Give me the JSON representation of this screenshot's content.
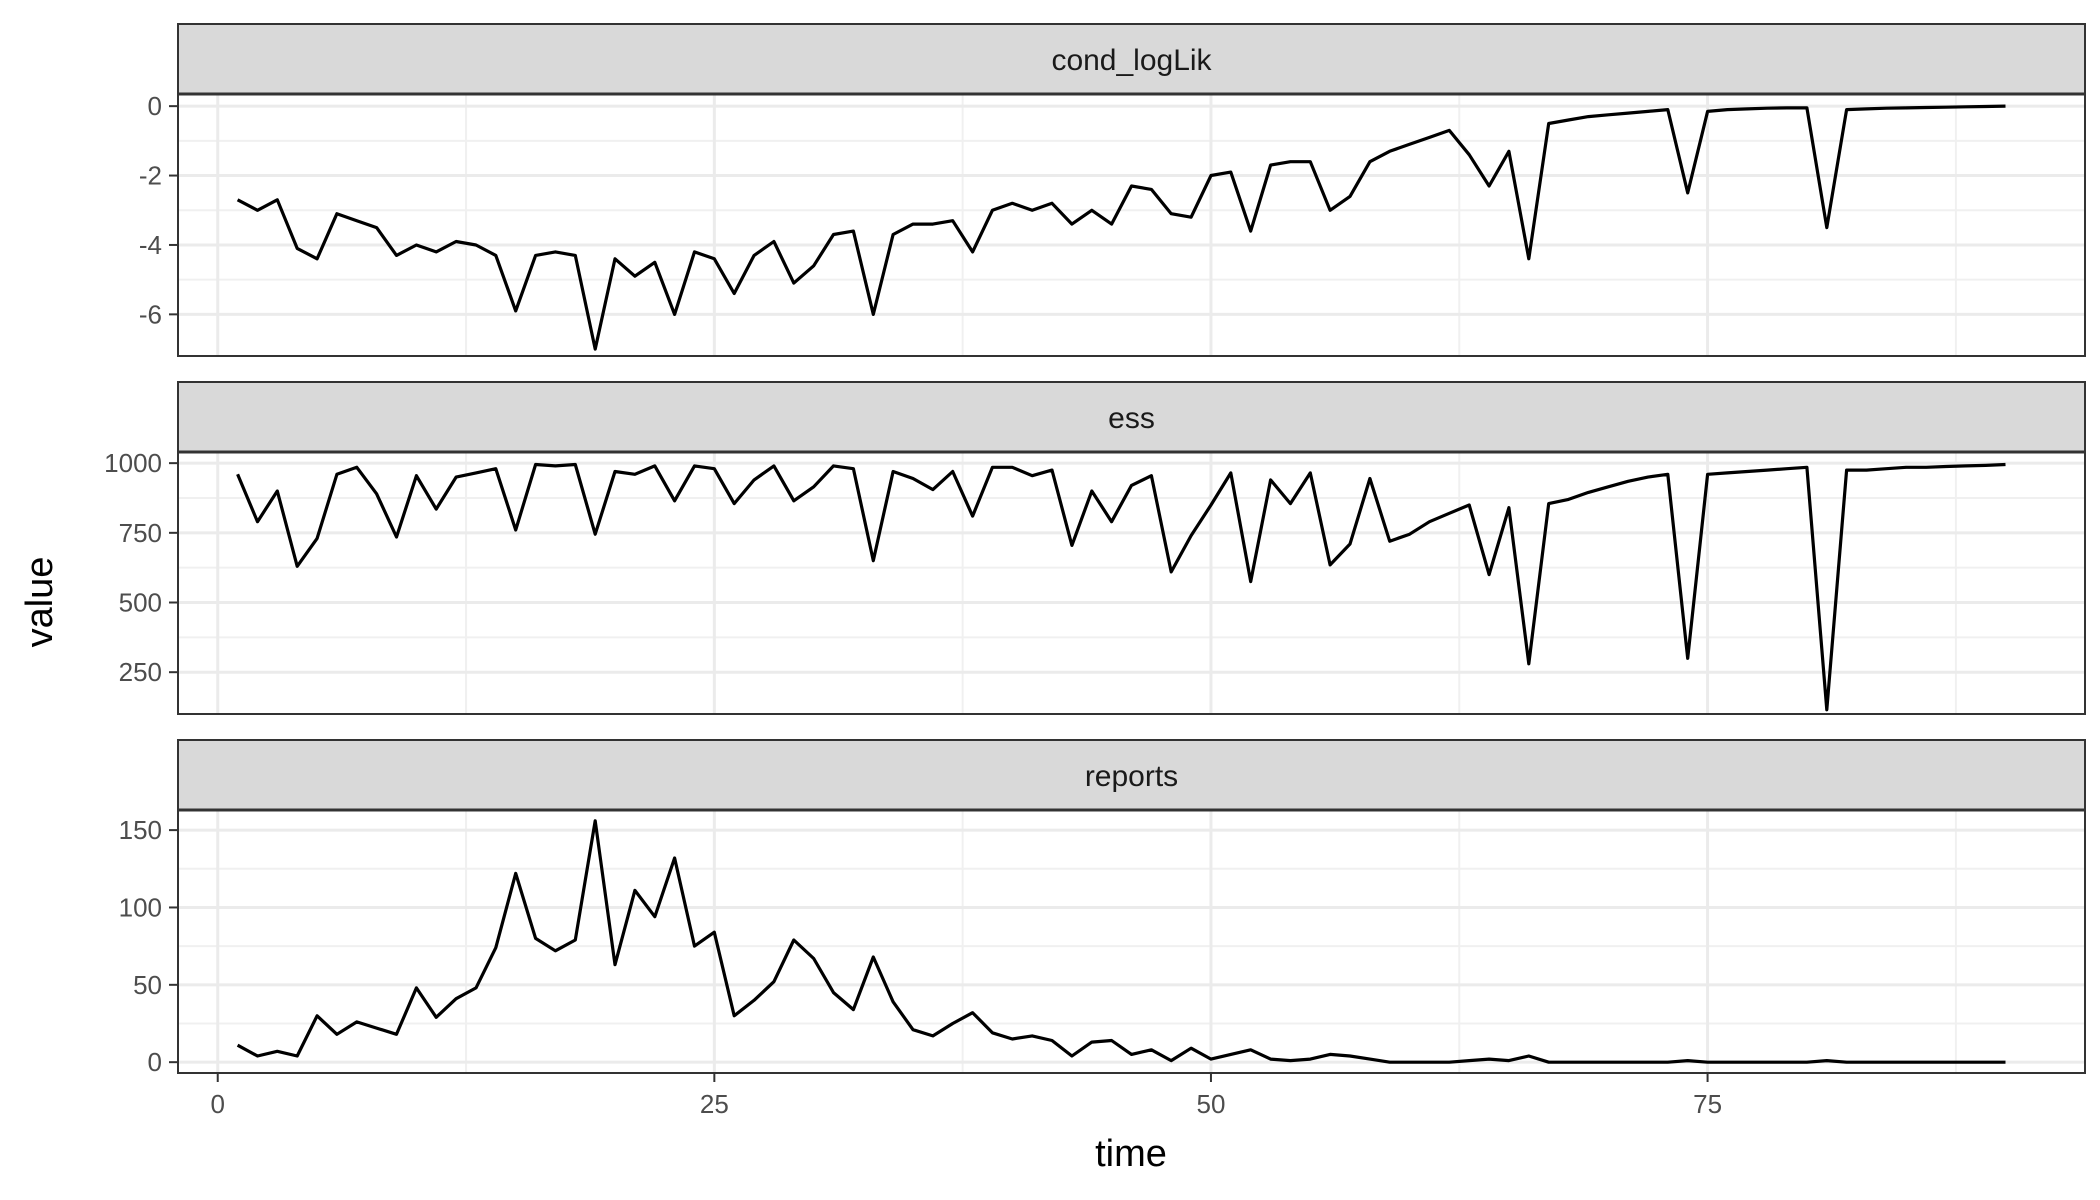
{
  "chart_data": {
    "type": "line",
    "xlabel": "time",
    "ylabel": "value",
    "xlim": [
      -2,
      94
    ],
    "x_ticks": [
      0,
      25,
      50,
      75
    ],
    "grid": true,
    "theme": "facet panels stacked vertically, gray strip headers",
    "line_color": "#000000",
    "panels": [
      {
        "name": "cond_logLik",
        "ylim": [
          -7.2,
          0.35
        ],
        "y_ticks": [
          0,
          -2,
          -4,
          -6
        ],
        "y_tick_labels": [
          "0",
          "-2",
          "-4",
          "-6"
        ],
        "x": [
          1,
          2,
          3,
          4,
          5,
          6,
          7,
          8,
          9,
          10,
          11,
          12,
          13,
          14,
          15,
          16,
          17,
          18,
          19,
          20,
          21,
          22,
          23,
          24,
          25,
          26,
          27,
          28,
          29,
          30,
          31,
          32,
          33,
          34,
          35,
          36,
          37,
          38,
          39,
          40,
          41,
          42,
          43,
          44,
          45,
          46,
          47,
          48,
          49,
          50,
          51,
          52,
          53,
          54,
          55,
          56,
          57,
          58,
          59,
          60,
          61,
          62,
          63,
          64,
          65,
          66,
          67,
          68,
          69,
          70,
          71,
          72,
          73,
          74,
          75,
          76,
          77,
          78,
          79,
          80,
          81,
          82,
          83,
          84,
          85,
          86,
          87,
          88,
          89,
          90
        ],
        "values": [
          -2.7,
          -3.0,
          -2.7,
          -4.1,
          -4.4,
          -3.1,
          -3.3,
          -3.5,
          -4.3,
          -4.0,
          -4.2,
          -3.9,
          -4.0,
          -4.3,
          -5.9,
          -4.3,
          -4.2,
          -4.3,
          -7.0,
          -4.4,
          -4.9,
          -4.5,
          -6.0,
          -4.2,
          -4.4,
          -5.4,
          -4.3,
          -3.9,
          -5.1,
          -4.6,
          -3.7,
          -3.6,
          -6.0,
          -3.7,
          -3.4,
          -3.4,
          -3.3,
          -4.2,
          -3.0,
          -2.8,
          -3.0,
          -2.8,
          -3.4,
          -3.0,
          -3.4,
          -2.3,
          -2.4,
          -3.1,
          -3.2,
          -2.0,
          -1.9,
          -3.6,
          -1.7,
          -1.6,
          -1.6,
          -3.0,
          -2.6,
          -1.6,
          -1.3,
          -1.1,
          -0.9,
          -0.7,
          -1.4,
          -2.3,
          -1.3,
          -4.4,
          -0.5,
          -0.4,
          -0.3,
          -0.25,
          -0.2,
          -0.15,
          -0.1,
          -2.5,
          -0.15,
          -0.1,
          -0.08,
          -0.06,
          -0.05,
          -0.05,
          -3.5,
          -0.1,
          -0.08,
          -0.06,
          -0.05,
          -0.04,
          -0.03,
          -0.02,
          -0.01,
          0.0
        ]
      },
      {
        "name": "ess",
        "ylim": [
          100,
          1040
        ],
        "y_ticks": [
          1000,
          750,
          500,
          250
        ],
        "y_tick_labels": [
          "1000",
          "750",
          "500",
          "250"
        ],
        "x": [
          1,
          2,
          3,
          4,
          5,
          6,
          7,
          8,
          9,
          10,
          11,
          12,
          13,
          14,
          15,
          16,
          17,
          18,
          19,
          20,
          21,
          22,
          23,
          24,
          25,
          26,
          27,
          28,
          29,
          30,
          31,
          32,
          33,
          34,
          35,
          36,
          37,
          38,
          39,
          40,
          41,
          42,
          43,
          44,
          45,
          46,
          47,
          48,
          49,
          50,
          51,
          52,
          53,
          54,
          55,
          56,
          57,
          58,
          59,
          60,
          61,
          62,
          63,
          64,
          65,
          66,
          67,
          68,
          69,
          70,
          71,
          72,
          73,
          74,
          75,
          76,
          77,
          78,
          79,
          80,
          81,
          82,
          83,
          84,
          85,
          86,
          87,
          88,
          89,
          90
        ],
        "values": [
          960,
          790,
          900,
          630,
          730,
          960,
          985,
          890,
          735,
          955,
          835,
          950,
          965,
          980,
          760,
          995,
          990,
          995,
          745,
          970,
          960,
          990,
          865,
          990,
          980,
          855,
          940,
          990,
          865,
          915,
          990,
          980,
          650,
          970,
          945,
          905,
          970,
          810,
          985,
          985,
          955,
          975,
          705,
          900,
          790,
          920,
          955,
          610,
          740,
          850,
          965,
          575,
          940,
          855,
          965,
          635,
          710,
          945,
          720,
          745,
          790,
          820,
          850,
          600,
          840,
          280,
          855,
          870,
          895,
          915,
          935,
          950,
          960,
          300,
          960,
          965,
          970,
          975,
          980,
          985,
          115,
          975,
          975,
          980,
          985,
          985,
          988,
          990,
          992,
          995
        ]
      },
      {
        "name": "reports",
        "ylim": [
          -7,
          163
        ],
        "y_ticks": [
          150,
          100,
          50,
          0
        ],
        "y_tick_labels": [
          "150",
          "100",
          "50",
          "0"
        ],
        "x": [
          1,
          2,
          3,
          4,
          5,
          6,
          7,
          8,
          9,
          10,
          11,
          12,
          13,
          14,
          15,
          16,
          17,
          18,
          19,
          20,
          21,
          22,
          23,
          24,
          25,
          26,
          27,
          28,
          29,
          30,
          31,
          32,
          33,
          34,
          35,
          36,
          37,
          38,
          39,
          40,
          41,
          42,
          43,
          44,
          45,
          46,
          47,
          48,
          49,
          50,
          51,
          52,
          53,
          54,
          55,
          56,
          57,
          58,
          59,
          60,
          61,
          62,
          63,
          64,
          65,
          66,
          67,
          68,
          69,
          70,
          71,
          72,
          73,
          74,
          75,
          76,
          77,
          78,
          79,
          80,
          81,
          82,
          83,
          84,
          85,
          86,
          87,
          88,
          89,
          90
        ],
        "values": [
          11,
          4,
          7,
          4,
          30,
          18,
          26,
          22,
          18,
          48,
          29,
          41,
          48,
          74,
          122,
          80,
          72,
          79,
          156,
          63,
          111,
          94,
          132,
          75,
          84,
          30,
          40,
          52,
          79,
          67,
          45,
          34,
          68,
          39,
          21,
          17,
          25,
          32,
          19,
          15,
          17,
          14,
          4,
          13,
          14,
          5,
          8,
          1,
          9,
          2,
          5,
          8,
          2,
          1,
          2,
          5,
          4,
          2,
          0,
          0,
          0,
          0,
          1,
          2,
          1,
          4,
          0,
          0,
          0,
          0,
          0,
          0,
          0,
          1,
          0,
          0,
          0,
          0,
          0,
          0,
          1,
          0,
          0,
          0,
          0,
          0,
          0,
          0,
          0,
          0
        ]
      }
    ]
  }
}
